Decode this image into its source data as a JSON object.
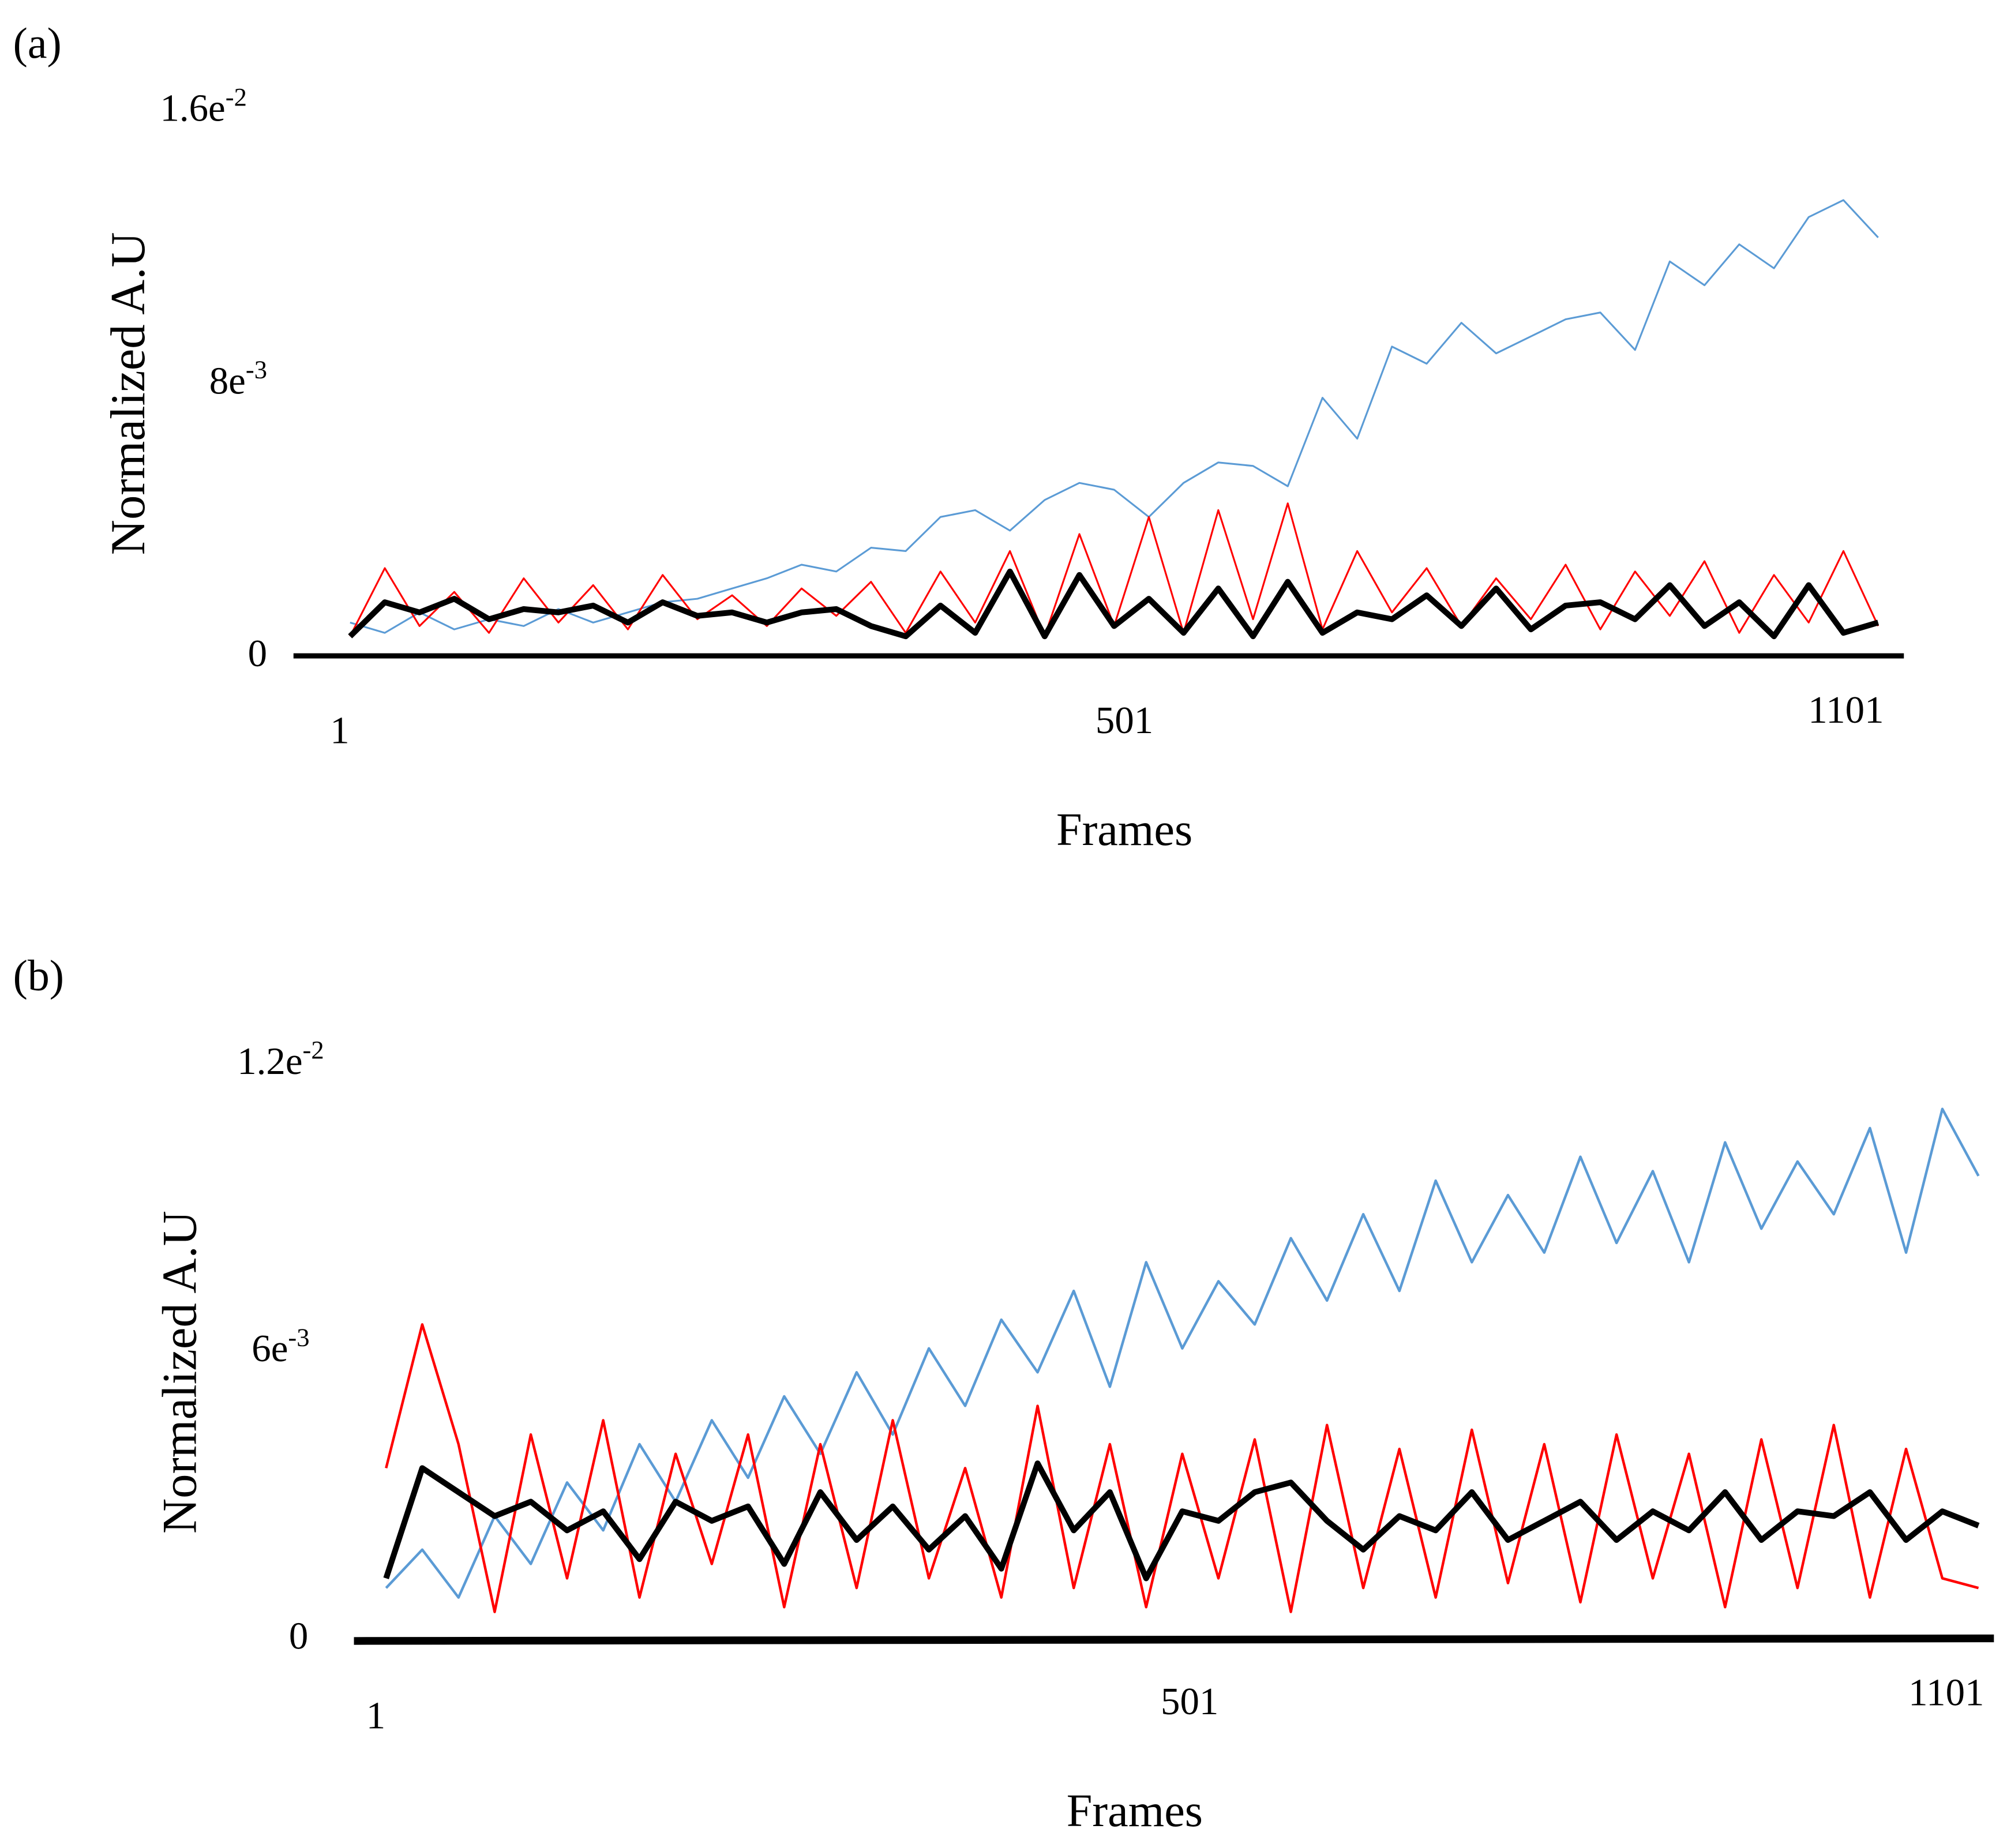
{
  "chart_data": [
    {
      "panel_label": "(a)",
      "type": "line",
      "xlabel": "Frames",
      "ylabel": "Normalized A.U",
      "xticks": [
        {
          "value": 1,
          "label": "1"
        },
        {
          "value": 501,
          "label": "501"
        },
        {
          "value": 1101,
          "label": "1101"
        }
      ],
      "yticks": [
        {
          "value": 0,
          "base": "0",
          "exp": ""
        },
        {
          "value": 0.008,
          "base": "8e",
          "exp": "-3"
        },
        {
          "value": 0.016,
          "base": "1.6e",
          "exp": "-2"
        }
      ],
      "xlim": [
        1,
        1101
      ],
      "ylim": [
        0,
        0.016
      ],
      "grid": false,
      "x": [
        1,
        26,
        51,
        76,
        101,
        126,
        151,
        176,
        201,
        226,
        251,
        276,
        301,
        326,
        351,
        376,
        401,
        426,
        451,
        476,
        501,
        526,
        551,
        576,
        601,
        626,
        651,
        676,
        701,
        726,
        751,
        776,
        801,
        826,
        851,
        876,
        901,
        926,
        951,
        976,
        1001,
        1026,
        1051,
        1076,
        1101
      ],
      "series": [
        {
          "color": "#5b9bd5",
          "width": "thin",
          "values": [
            0.0009,
            0.0006,
            0.0012,
            0.0007,
            0.001,
            0.0008,
            0.0013,
            0.0009,
            0.0012,
            0.0015,
            0.0016,
            0.0019,
            0.0022,
            0.0026,
            0.0024,
            0.0031,
            0.003,
            0.004,
            0.0042,
            0.0036,
            0.0045,
            0.005,
            0.0048,
            0.004,
            0.005,
            0.0056,
            0.0055,
            0.0049,
            0.0075,
            0.0063,
            0.009,
            0.0085,
            0.0097,
            0.0088,
            0.0093,
            0.0098,
            0.01,
            0.0089,
            0.0115,
            0.0108,
            0.012,
            0.0113,
            0.0128,
            0.0133,
            0.0122
          ]
        },
        {
          "color": "#ff0000",
          "width": "thin",
          "values": [
            0.0005,
            0.0025,
            0.0008,
            0.0018,
            0.0006,
            0.0022,
            0.0009,
            0.002,
            0.0007,
            0.0023,
            0.001,
            0.0017,
            0.0008,
            0.0019,
            0.0011,
            0.0021,
            0.0006,
            0.0024,
            0.0009,
            0.003,
            0.0005,
            0.0035,
            0.0008,
            0.004,
            0.0006,
            0.0042,
            0.001,
            0.0044,
            0.0007,
            0.003,
            0.0012,
            0.0025,
            0.0008,
            0.0022,
            0.001,
            0.0026,
            0.0007,
            0.0024,
            0.0011,
            0.0027,
            0.0006,
            0.0023,
            0.0009,
            0.003,
            0.0008
          ]
        },
        {
          "color": "#000000",
          "width": "thick",
          "values": [
            0.0005,
            0.0015,
            0.0012,
            0.0016,
            0.001,
            0.0013,
            0.0012,
            0.0014,
            0.0009,
            0.0015,
            0.0011,
            0.0012,
            0.0009,
            0.0012,
            0.0013,
            0.0008,
            0.0005,
            0.0014,
            0.0006,
            0.0024,
            0.0005,
            0.0023,
            0.0008,
            0.0016,
            0.0006,
            0.0019,
            0.0005,
            0.0021,
            0.0006,
            0.0012,
            0.001,
            0.0017,
            0.0008,
            0.0019,
            0.0007,
            0.0014,
            0.0015,
            0.001,
            0.002,
            0.0008,
            0.0015,
            0.0005,
            0.002,
            0.0006,
            0.0009
          ]
        }
      ]
    },
    {
      "panel_label": "(b)",
      "type": "line",
      "xlabel": "Frames",
      "ylabel": "Normalized A.U",
      "xticks": [
        {
          "value": 1,
          "label": "1"
        },
        {
          "value": 501,
          "label": "501"
        },
        {
          "value": 1101,
          "label": "1101"
        }
      ],
      "yticks": [
        {
          "value": 0,
          "base": "0",
          "exp": ""
        },
        {
          "value": 0.006,
          "base": "6e",
          "exp": "-3"
        },
        {
          "value": 0.012,
          "base": "1.2e",
          "exp": "-2"
        }
      ],
      "xlim": [
        1,
        1101
      ],
      "ylim": [
        0,
        0.012
      ],
      "grid": false,
      "x": [
        1,
        26,
        51,
        76,
        101,
        126,
        151,
        176,
        201,
        226,
        251,
        276,
        301,
        326,
        351,
        376,
        401,
        426,
        451,
        476,
        501,
        526,
        551,
        576,
        601,
        626,
        651,
        676,
        701,
        726,
        751,
        776,
        801,
        826,
        851,
        876,
        901,
        926,
        951,
        976,
        1001,
        1026,
        1051,
        1076,
        1101
      ],
      "series": [
        {
          "color": "#5b9bd5",
          "width": "medium",
          "values": [
            0.001,
            0.0018,
            0.0008,
            0.0025,
            0.0015,
            0.0032,
            0.0022,
            0.004,
            0.0028,
            0.0045,
            0.0033,
            0.005,
            0.0038,
            0.0055,
            0.0042,
            0.006,
            0.0048,
            0.0066,
            0.0055,
            0.0072,
            0.0052,
            0.0078,
            0.006,
            0.0074,
            0.0065,
            0.0083,
            0.007,
            0.0088,
            0.0072,
            0.0095,
            0.0078,
            0.0092,
            0.008,
            0.01,
            0.0082,
            0.0097,
            0.0078,
            0.0103,
            0.0085,
            0.0099,
            0.0088,
            0.0106,
            0.008,
            0.011,
            0.0096
          ]
        },
        {
          "color": "#ff0000",
          "width": "medium",
          "values": [
            0.0035,
            0.0065,
            0.004,
            0.0005,
            0.0042,
            0.0012,
            0.0045,
            0.0008,
            0.0038,
            0.0015,
            0.0042,
            0.0006,
            0.004,
            0.001,
            0.0045,
            0.0012,
            0.0035,
            0.0008,
            0.0048,
            0.001,
            0.004,
            0.0006,
            0.0038,
            0.0012,
            0.0041,
            0.0005,
            0.0044,
            0.001,
            0.0039,
            0.0008,
            0.0043,
            0.0011,
            0.004,
            0.0007,
            0.0042,
            0.0012,
            0.0038,
            0.0006,
            0.0041,
            0.001,
            0.0044,
            0.0008,
            0.0039,
            0.0012,
            0.001
          ]
        },
        {
          "color": "#000000",
          "width": "thick",
          "values": [
            0.0012,
            0.0035,
            0.003,
            0.0025,
            0.0028,
            0.0022,
            0.0026,
            0.0016,
            0.0028,
            0.0024,
            0.0027,
            0.0015,
            0.003,
            0.002,
            0.0027,
            0.0018,
            0.0025,
            0.0014,
            0.0036,
            0.0022,
            0.003,
            0.0012,
            0.0026,
            0.0024,
            0.003,
            0.0032,
            0.0024,
            0.0018,
            0.0025,
            0.0022,
            0.003,
            0.002,
            0.0024,
            0.0028,
            0.002,
            0.0026,
            0.0022,
            0.003,
            0.002,
            0.0026,
            0.0025,
            0.003,
            0.002,
            0.0026,
            0.0023
          ]
        }
      ]
    }
  ]
}
